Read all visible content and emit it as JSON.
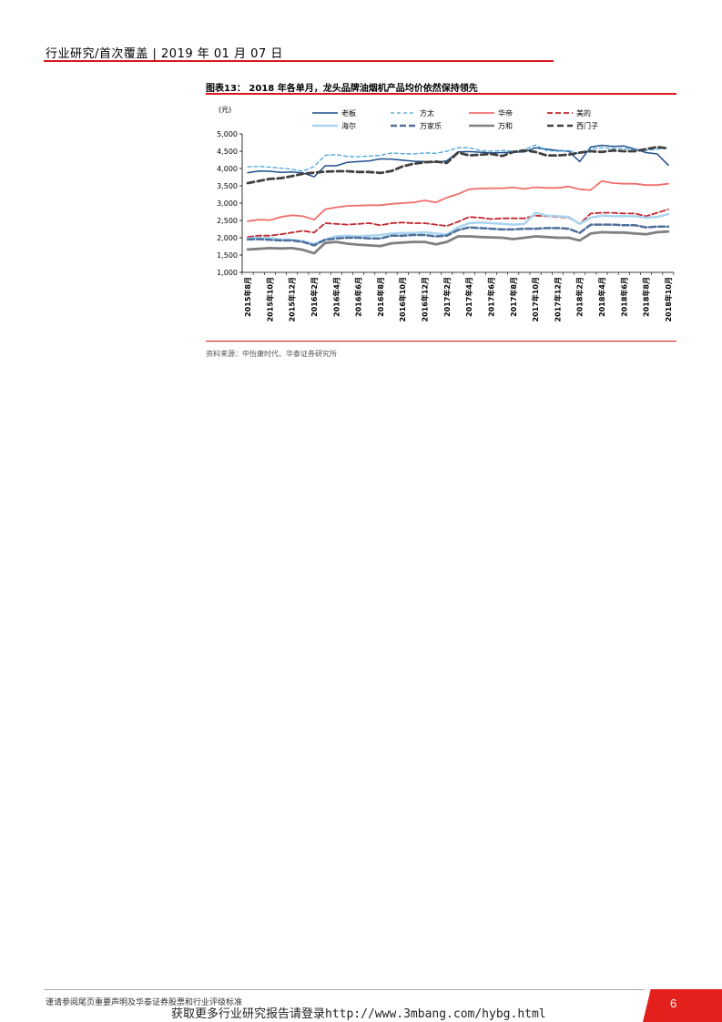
{
  "header": {
    "text": "行业研究/首次覆盖 | 2019 年 01 月 07 日"
  },
  "figure": {
    "title": "图表13：  2018 年各单月，龙头品牌油烟机产品均价依然保持领先",
    "source": "资料来源：中怡康时代、华泰证券研究所"
  },
  "chart_data": {
    "type": "line",
    "y_unit": "(元)",
    "ylim": [
      1000,
      5000
    ],
    "y_ticks": [
      "1,000",
      "1,500",
      "2,000",
      "2,500",
      "3,000",
      "3,500",
      "4,000",
      "4,500",
      "5,000"
    ],
    "x_tick_labels": [
      "2015年8月",
      "2015年10月",
      "2015年12月",
      "2016年2月",
      "2016年4月",
      "2016年6月",
      "2016年8月",
      "2016年10月",
      "2016年12月",
      "2017年2月",
      "2017年4月",
      "2017年6月",
      "2017年8月",
      "2017年10月",
      "2017年12月",
      "2018年2月",
      "2018年4月",
      "2018年6月",
      "2018年8月",
      "2018年10月"
    ],
    "x": [
      "2015-08",
      "2015-09",
      "2015-10",
      "2015-11",
      "2015-12",
      "2016-01",
      "2016-02",
      "2016-03",
      "2016-04",
      "2016-05",
      "2016-06",
      "2016-07",
      "2016-08",
      "2016-09",
      "2016-10",
      "2016-11",
      "2016-12",
      "2017-01",
      "2017-02",
      "2017-03",
      "2017-04",
      "2017-05",
      "2017-06",
      "2017-07",
      "2017-08",
      "2017-09",
      "2017-10",
      "2017-11",
      "2017-12",
      "2018-01",
      "2018-02",
      "2018-03",
      "2018-04",
      "2018-05",
      "2018-06",
      "2018-07",
      "2018-08",
      "2018-09",
      "2018-10"
    ],
    "series": [
      {
        "name": "老板",
        "color": "#1f4e8c",
        "dash": "",
        "width": 1.5,
        "values": [
          3880,
          3930,
          3920,
          3890,
          3900,
          3870,
          3760,
          4080,
          4080,
          4180,
          4200,
          4220,
          4280,
          4270,
          4240,
          4210,
          4200,
          4180,
          4220,
          4480,
          4490,
          4470,
          4450,
          4460,
          4470,
          4480,
          4600,
          4560,
          4520,
          4500,
          4200,
          4620,
          4670,
          4640,
          4650,
          4560,
          4460,
          4420,
          4100
        ]
      },
      {
        "name": "方太",
        "color": "#4aa3d8",
        "dash": "4,3",
        "width": 1.3,
        "values": [
          4050,
          4060,
          4040,
          4010,
          3980,
          3920,
          4060,
          4380,
          4400,
          4350,
          4340,
          4360,
          4380,
          4450,
          4430,
          4420,
          4450,
          4440,
          4500,
          4600,
          4600,
          4520,
          4500,
          4520,
          4500,
          4540,
          4680,
          4520,
          4500,
          4520,
          4420,
          4560,
          4600,
          4580,
          4580,
          4550,
          4520,
          4560,
          4600
        ]
      },
      {
        "name": "华帝",
        "color": "#ef6f6c",
        "dash": "",
        "width": 1.8,
        "values": [
          2480,
          2520,
          2510,
          2600,
          2650,
          2620,
          2520,
          2820,
          2880,
          2920,
          2930,
          2940,
          2940,
          2980,
          3000,
          3020,
          3080,
          3020,
          3160,
          3260,
          3400,
          3420,
          3430,
          3430,
          3450,
          3410,
          3460,
          3440,
          3440,
          3480,
          3400,
          3380,
          3640,
          3580,
          3560,
          3560,
          3520,
          3520,
          3560
        ]
      },
      {
        "name": "美的",
        "color": "#c1272d",
        "dash": "6,3",
        "width": 1.8,
        "values": [
          2020,
          2060,
          2060,
          2100,
          2150,
          2200,
          2150,
          2420,
          2400,
          2380,
          2400,
          2420,
          2360,
          2420,
          2440,
          2420,
          2420,
          2380,
          2340,
          2460,
          2600,
          2580,
          2540,
          2560,
          2560,
          2560,
          2640,
          2620,
          2600,
          2580,
          2400,
          2700,
          2720,
          2720,
          2700,
          2700,
          2620,
          2720,
          2820
        ]
      },
      {
        "name": "海尔",
        "color": "#a8d4f0",
        "dash": "",
        "width": 2.5,
        "values": [
          1980,
          2000,
          1990,
          1950,
          1940,
          1900,
          1820,
          1950,
          2040,
          2060,
          2040,
          2060,
          2080,
          2120,
          2140,
          2140,
          2160,
          2120,
          2100,
          2300,
          2420,
          2440,
          2420,
          2400,
          2380,
          2400,
          2720,
          2640,
          2620,
          2600,
          2400,
          2580,
          2640,
          2620,
          2620,
          2620,
          2580,
          2600,
          2680
        ]
      },
      {
        "name": "万家乐",
        "color": "#4d6f9a",
        "dash": "7,3",
        "width": 2.5,
        "values": [
          1950,
          1960,
          1940,
          1920,
          1920,
          1880,
          1780,
          1940,
          1980,
          2000,
          2000,
          1980,
          1980,
          2060,
          2060,
          2080,
          2080,
          2040,
          2060,
          2220,
          2300,
          2280,
          2260,
          2240,
          2240,
          2260,
          2260,
          2280,
          2280,
          2260,
          2140,
          2380,
          2380,
          2380,
          2360,
          2360,
          2300,
          2320,
          2320
        ]
      },
      {
        "name": "万和",
        "color": "#808080",
        "dash": "",
        "width": 2.8,
        "values": [
          1660,
          1680,
          1700,
          1690,
          1700,
          1650,
          1550,
          1850,
          1880,
          1830,
          1800,
          1780,
          1760,
          1840,
          1860,
          1880,
          1880,
          1810,
          1880,
          2040,
          2040,
          2020,
          2010,
          2000,
          1960,
          2000,
          2040,
          2020,
          2000,
          2000,
          1920,
          2120,
          2160,
          2150,
          2150,
          2120,
          2100,
          2160,
          2180
        ]
      },
      {
        "name": "西门子",
        "color": "#404040",
        "dash": "7,4",
        "width": 2.8,
        "values": [
          3580,
          3640,
          3700,
          3720,
          3780,
          3850,
          3880,
          3910,
          3920,
          3920,
          3900,
          3900,
          3870,
          3930,
          4060,
          4140,
          4180,
          4200,
          4160,
          4460,
          4380,
          4400,
          4420,
          4360,
          4480,
          4520,
          4480,
          4380,
          4380,
          4400,
          4460,
          4500,
          4480,
          4520,
          4500,
          4500,
          4560,
          4620,
          4580
        ]
      }
    ]
  },
  "footer": {
    "note": "谨请参阅尾页重要声明及华泰证券股票和行业评级标准",
    "watermark": "获取更多行业研究报告请登录http://www.3mbang.com/hybg.html",
    "page_number": "6"
  }
}
